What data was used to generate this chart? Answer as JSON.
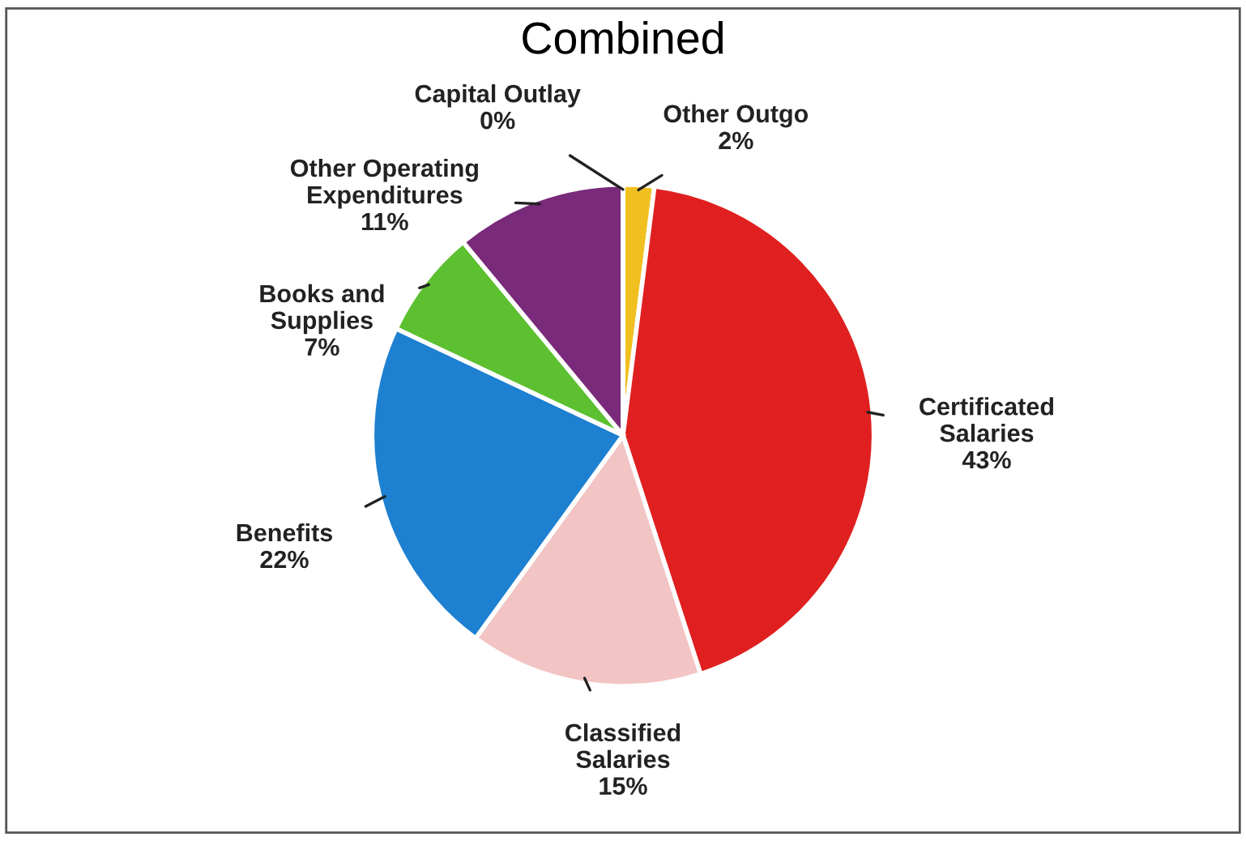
{
  "chart_data": {
    "type": "pie",
    "title": "Combined",
    "categories": [
      "Other Outgo",
      "Certificated Salaries",
      "Classified Salaries",
      "Benefits",
      "Books and Supplies",
      "Other Operating Expenditures",
      "Capital Outlay"
    ],
    "values": [
      2,
      43,
      15,
      22,
      7,
      11,
      0
    ],
    "value_labels": [
      "2%",
      "43%",
      "15%",
      "22%",
      "7%",
      "11%",
      "0%"
    ],
    "colors": [
      "#f0c020",
      "#e02020",
      "#f2c4c4",
      "#1e80d0",
      "#5cc030",
      "#7a2a7a",
      "#f4f4f4"
    ]
  }
}
